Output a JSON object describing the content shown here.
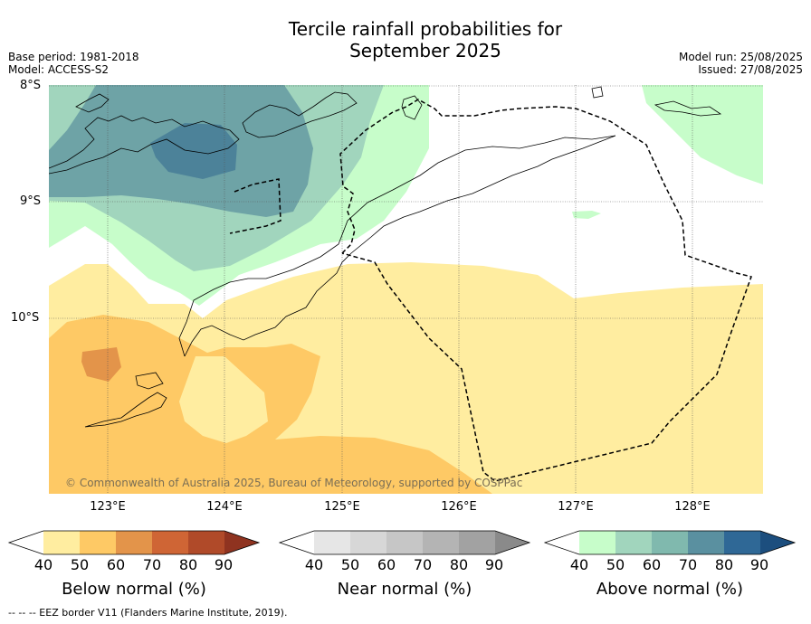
{
  "title_line1": "Tercile rainfall probabilities for",
  "title_line2": "September 2025",
  "meta_left": [
    "Base period: 1981-2018",
    "Model: ACCESS-S2"
  ],
  "meta_right": [
    "Model run: 25/08/2025",
    "Issued: 27/08/2025"
  ],
  "lat_labels": [
    "8°S",
    "9°S",
    "10°S"
  ],
  "lon_labels": [
    "123°E",
    "124°E",
    "125°E",
    "126°E",
    "127°E",
    "128°E"
  ],
  "copyright": "© Commonwealth of Australia 2025, Bureau of Meteorology, supported by COSPPac",
  "colorbars": [
    {
      "title": "Below normal (%)",
      "ticks": [
        "40",
        "50",
        "60",
        "70",
        "80",
        "90"
      ],
      "colors": [
        "#ffeda0",
        "#fec965",
        "#e3944a",
        "#cf6535",
        "#b04a29",
        "#8f3320"
      ]
    },
    {
      "title": "Near normal (%)",
      "ticks": [
        "40",
        "50",
        "60",
        "70",
        "80",
        "90"
      ],
      "colors": [
        "#e6e6e6",
        "#d7d7d7",
        "#c6c6c6",
        "#b4b4b4",
        "#a2a2a2",
        "#8a8a8a"
      ]
    },
    {
      "title": "Above normal (%)",
      "ticks": [
        "40",
        "50",
        "60",
        "70",
        "80",
        "90"
      ],
      "colors": [
        "#c7fdca",
        "#a1d5bd",
        "#80b9ae",
        "#5a90a0",
        "#2f6896",
        "#1c4e7e"
      ]
    }
  ],
  "footnote": "-- -- -- EEZ border V11 (Flanders Marine Institute, 2019).",
  "legend_colors": {
    "above_40": "#c7fdca",
    "above_50": "#a1d5bd",
    "above_60": "#6ea3a6",
    "above_70": "#4c8299",
    "below_40": "#ffeda0",
    "below_50": "#fec965",
    "below_60": "#e3944a"
  }
}
